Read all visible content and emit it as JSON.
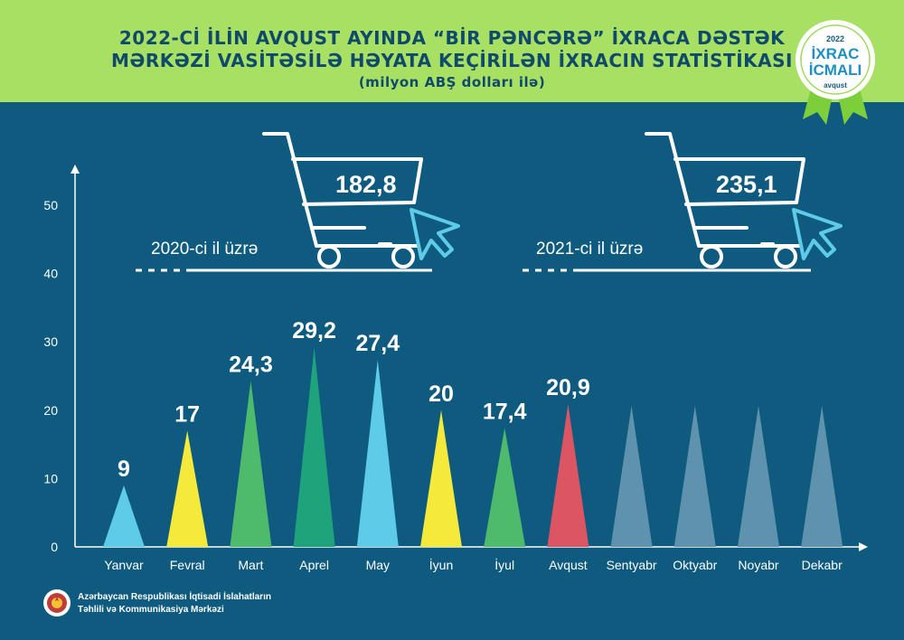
{
  "header": {
    "title_line1": "2022-Cİ İLİN AVQUST AYINDA “BİR PƏNCƏRƏ” İXRACA DƏSTƏK",
    "title_line2": "MƏRKƏZİ VASİTƏSİLƏ HƏYATA KEÇİRİLƏN İXRACIN STATİSTİKASI",
    "subtitle": "(milyon ABŞ dolları ilə)"
  },
  "badge": {
    "year": "2022",
    "line1": "İXRAC",
    "line2": "İCMALI",
    "month": "avqust"
  },
  "totals": [
    {
      "label": "2020-ci il üzrə",
      "value": "182,8"
    },
    {
      "label": "2021-ci il üzrə",
      "value": "235,1"
    }
  ],
  "footer": {
    "line1": "Azərbaycan Respublikası İqtisadi İslahatların",
    "line2": "Təhlili və Kommunikasiya Mərkəzi"
  },
  "colors": {
    "background": "#0f5b80",
    "header": "#a8e063",
    "axis": "#ffffff",
    "cyan": "#5ecbe8",
    "yellow": "#f5ea3c",
    "green": "#4dbb6b",
    "dark_green": "#1fa37a",
    "red": "#dc5563",
    "future": "#5f92ad"
  },
  "chart_data": {
    "type": "bar",
    "ylim": [
      0,
      50
    ],
    "yticks": [
      0,
      10,
      20,
      30,
      40,
      50
    ],
    "categories": [
      "Yanvar",
      "Fevral",
      "Mart",
      "Aprel",
      "May",
      "İyun",
      "İyul",
      "Avqust",
      "Sentyabr",
      "Oktyabr",
      "Noyabr",
      "Dekabr"
    ],
    "values": [
      9,
      17,
      24.3,
      29.2,
      27.4,
      20,
      17.4,
      20.9,
      null,
      null,
      null,
      null
    ],
    "labels": [
      "9",
      "17",
      "24,3",
      "29,2",
      "27,4",
      "20",
      "17,4",
      "20,9",
      "",
      "",
      "",
      ""
    ],
    "colors": [
      "#5ecbe8",
      "#f5ea3c",
      "#4dbb6b",
      "#1fa37a",
      "#5ecbe8",
      "#f5ea3c",
      "#4dbb6b",
      "#dc5563",
      "#5f92ad",
      "#5f92ad",
      "#5f92ad",
      "#5f92ad"
    ]
  }
}
